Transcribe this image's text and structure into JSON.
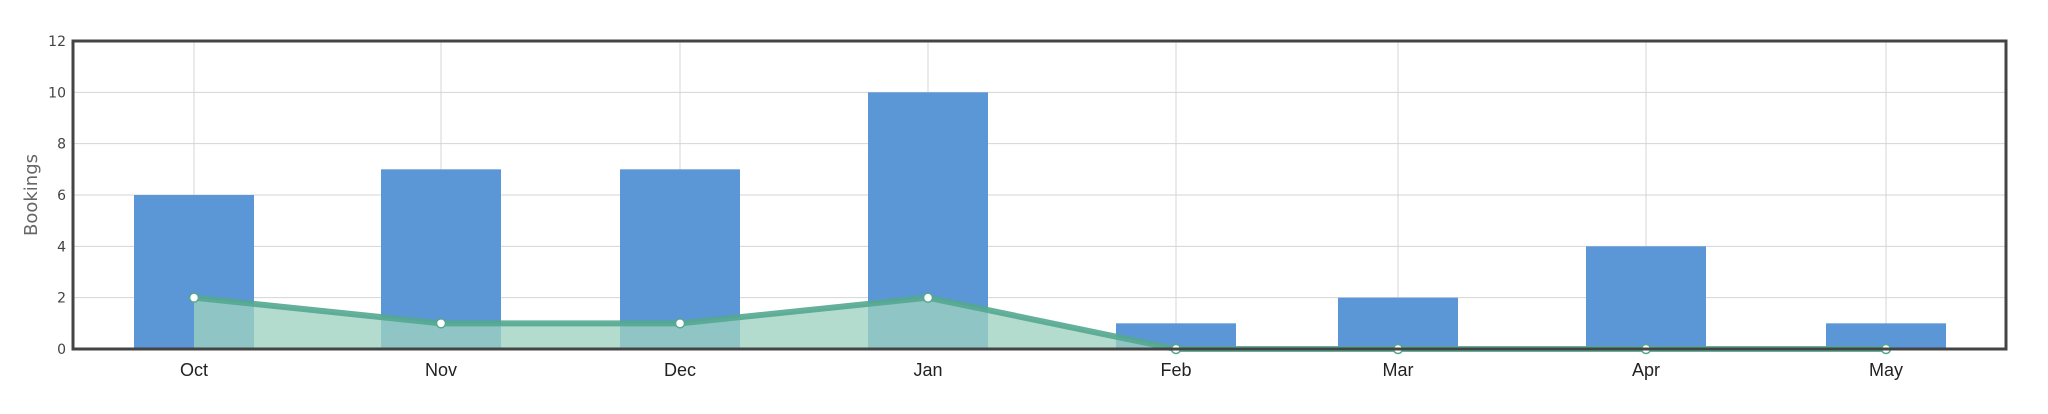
{
  "chart_data": {
    "type": "bar",
    "categories": [
      "Oct",
      "Nov",
      "Dec",
      "Jan",
      "Feb",
      "Mar",
      "Apr",
      "May"
    ],
    "series": [
      {
        "type": "bar",
        "values": [
          6,
          7,
          7,
          10,
          1,
          2,
          4,
          1
        ]
      },
      {
        "type": "area",
        "values": [
          2,
          1,
          1,
          2,
          0,
          0,
          0,
          0
        ]
      }
    ],
    "xlabel": "",
    "ylabel": "Bookings",
    "ylim": [
      0,
      12
    ],
    "yticks": [
      0,
      2,
      4,
      6,
      8,
      10,
      12
    ],
    "grid": true,
    "colors": {
      "bar": "#5b96d6",
      "area_fill": "#9fd2c0",
      "line": "#54a790",
      "grid": "#d4d4d4",
      "frame": "#444444"
    }
  }
}
